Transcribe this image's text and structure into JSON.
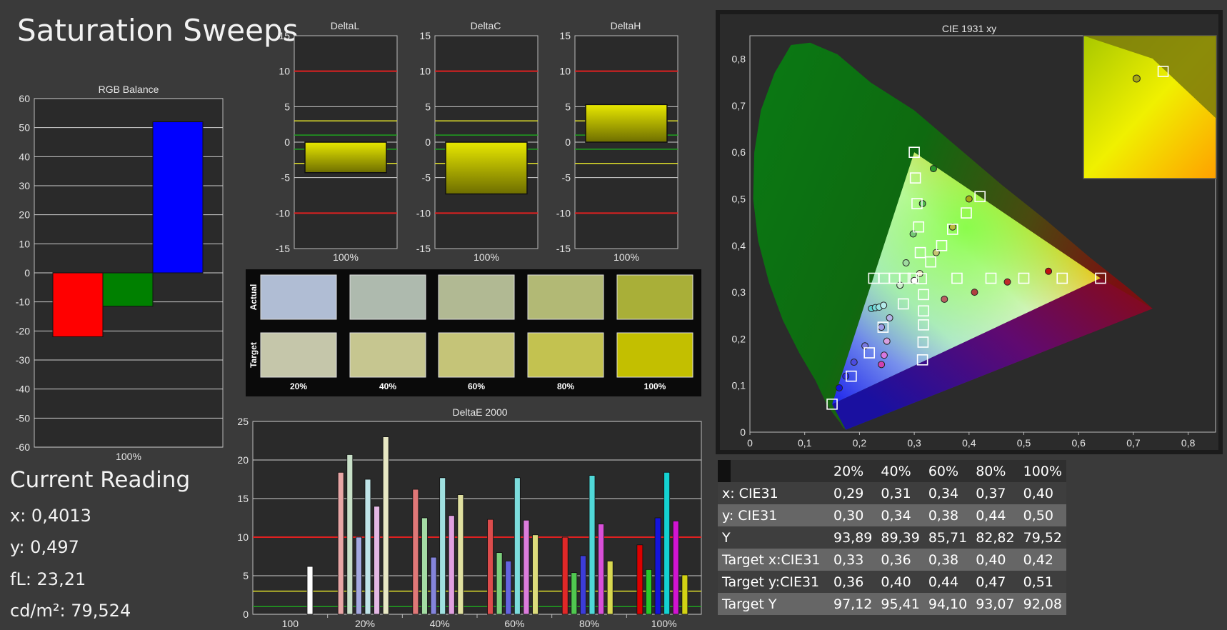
{
  "page": {
    "title": "Saturation Sweeps"
  },
  "current_reading": {
    "title": "Current Reading",
    "lines": [
      "x: 0,4013",
      "y: 0,497",
      "fL: 23,21",
      "cd/m²: 79,524"
    ]
  },
  "swatches": {
    "row_labels": [
      "Actual",
      "Target"
    ],
    "column_labels": [
      "20%",
      "40%",
      "60%",
      "80%",
      "100%"
    ],
    "actual_colors": [
      "#b0bdd4",
      "#aebaae",
      "#b1b993",
      "#b2b975",
      "#a9af38"
    ],
    "target_colors": [
      "#c5c6aa",
      "#c6c690",
      "#c5c478",
      "#c3c250",
      "#c3bf00"
    ]
  },
  "table": {
    "columns": [
      "20%",
      "40%",
      "60%",
      "80%",
      "100%"
    ],
    "rows": [
      {
        "label": "x: CIE31",
        "values": [
          "0,29",
          "0,31",
          "0,34",
          "0,37",
          "0,40"
        ]
      },
      {
        "label": "y: CIE31",
        "values": [
          "0,30",
          "0,34",
          "0,38",
          "0,44",
          "0,50"
        ]
      },
      {
        "label": "Y",
        "values": [
          "93,89",
          "89,39",
          "85,71",
          "82,82",
          "79,52"
        ]
      },
      {
        "label": "Target x:CIE31",
        "values": [
          "0,33",
          "0,36",
          "0,38",
          "0,40",
          "0,42"
        ]
      },
      {
        "label": "Target y:CIE31",
        "values": [
          "0,36",
          "0,40",
          "0,44",
          "0,47",
          "0,51"
        ]
      },
      {
        "label": "Target Y",
        "values": [
          "97,12",
          "95,41",
          "94,10",
          "93,07",
          "92,08"
        ]
      }
    ]
  },
  "chart_data": [
    {
      "id": "rgb-balance",
      "type": "bar",
      "title": "RGB Balance",
      "categories": [
        "100%"
      ],
      "series": [
        {
          "color": "#ff0000",
          "values": [
            -22
          ]
        },
        {
          "color": "#008000",
          "values": [
            -11.5
          ]
        },
        {
          "color": "#0000ff",
          "values": [
            52
          ]
        }
      ],
      "ylim": [
        -60,
        60
      ],
      "yticks": [
        60,
        50,
        40,
        30,
        20,
        10,
        0,
        -10,
        -20,
        -30,
        -40,
        -50,
        -60
      ],
      "grid": true
    },
    {
      "id": "delta-l",
      "type": "bar",
      "title": "DeltaL",
      "categories": [
        "100%"
      ],
      "values": [
        -4.3
      ],
      "ylim": [
        -15,
        15
      ],
      "yticks": [
        15,
        10,
        5,
        0,
        -5,
        -10,
        -15
      ],
      "red_lines": [
        10,
        -10
      ],
      "yellow_lines": [
        3,
        -3
      ],
      "green_lines": [
        1,
        -1
      ]
    },
    {
      "id": "delta-c",
      "type": "bar",
      "title": "DeltaC",
      "categories": [
        "100%"
      ],
      "values": [
        -7.3
      ],
      "ylim": [
        -15,
        15
      ],
      "yticks": [
        15,
        10,
        5,
        0,
        -5,
        -10,
        -15
      ],
      "red_lines": [
        10,
        -10
      ],
      "yellow_lines": [
        3,
        -3
      ],
      "green_lines": [
        1,
        -1
      ]
    },
    {
      "id": "delta-h",
      "type": "bar",
      "title": "DeltaH",
      "categories": [
        "100%"
      ],
      "values": [
        5.3
      ],
      "ylim": [
        -15,
        15
      ],
      "yticks": [
        15,
        10,
        5,
        0,
        -5,
        -10,
        -15
      ],
      "red_lines": [
        10,
        -10
      ],
      "yellow_lines": [
        3,
        -3
      ],
      "green_lines": [
        1,
        -1
      ]
    },
    {
      "id": "delta-e-2000",
      "type": "bar",
      "title": "DeltaE 2000",
      "categories": [
        "100",
        "20%",
        "40%",
        "60%",
        "80%",
        "100%"
      ],
      "groups": [
        {
          "category": "100",
          "bars": [
            {
              "color": "#ffffff",
              "value": 6.2
            }
          ]
        },
        {
          "category": "20%",
          "bars": [
            {
              "color": "#e8a6a6",
              "value": 18.4
            },
            {
              "color": "#c8e0c8",
              "value": 20.7
            },
            {
              "color": "#a4a8e0",
              "value": 10.0
            },
            {
              "color": "#c0e4e8",
              "value": 17.5
            },
            {
              "color": "#e4b8e4",
              "value": 14.0
            },
            {
              "color": "#e8e8c4",
              "value": 23.0
            }
          ]
        },
        {
          "category": "40%",
          "bars": [
            {
              "color": "#e07878",
              "value": 16.2
            },
            {
              "color": "#a4dca4",
              "value": 12.5
            },
            {
              "color": "#8484dc",
              "value": 7.4
            },
            {
              "color": "#a0e0e0",
              "value": 17.7
            },
            {
              "color": "#e0a0e0",
              "value": 12.8
            },
            {
              "color": "#e0e0a0",
              "value": 15.5
            }
          ]
        },
        {
          "category": "60%",
          "bars": [
            {
              "color": "#dc4c4c",
              "value": 12.3
            },
            {
              "color": "#7cd07c",
              "value": 8.0
            },
            {
              "color": "#6464e0",
              "value": 6.9
            },
            {
              "color": "#7cdcdc",
              "value": 17.7
            },
            {
              "color": "#dc7cdc",
              "value": 12.2
            },
            {
              "color": "#dcdc7c",
              "value": 10.3
            }
          ]
        },
        {
          "category": "80%",
          "bars": [
            {
              "color": "#e02828",
              "value": 10.0
            },
            {
              "color": "#50c850",
              "value": 5.4
            },
            {
              "color": "#3c3cd8",
              "value": 7.6
            },
            {
              "color": "#50d8d8",
              "value": 18.0
            },
            {
              "color": "#d850d8",
              "value": 11.7
            },
            {
              "color": "#d8d850",
              "value": 6.9
            }
          ]
        },
        {
          "category": "100%",
          "bars": [
            {
              "color": "#dc0000",
              "value": 9.0
            },
            {
              "color": "#28c828",
              "value": 5.8
            },
            {
              "color": "#1414dc",
              "value": 12.5
            },
            {
              "color": "#14d2d2",
              "value": 18.4
            },
            {
              "color": "#d214d2",
              "value": 12.1
            },
            {
              "color": "#d2d214",
              "value": 5.1
            }
          ]
        }
      ],
      "ylim": [
        0,
        25
      ],
      "yticks": [
        25,
        20,
        15,
        10,
        5,
        0
      ],
      "red_lines": [
        10
      ],
      "yellow_lines": [
        3
      ],
      "green_lines": [
        1
      ]
    },
    {
      "id": "cie-1931-xy",
      "type": "scatter",
      "title": "CIE 1931 xy",
      "xlim": [
        0,
        0.85
      ],
      "ylim": [
        0,
        0.85
      ],
      "xticks": [
        "0",
        "0,1",
        "0,2",
        "0,3",
        "0,4",
        "0,5",
        "0,6",
        "0,7",
        "0,8"
      ],
      "yticks": [
        "0",
        "0,1",
        "0,2",
        "0,3",
        "0,4",
        "0,5",
        "0,6",
        "0,7",
        "0,8"
      ],
      "gamut_triangle": [
        [
          0.64,
          0.33
        ],
        [
          0.3,
          0.6
        ],
        [
          0.15,
          0.06
        ]
      ],
      "targets": [
        [
          0.3,
          0.6
        ],
        [
          0.302,
          0.545
        ],
        [
          0.305,
          0.49
        ],
        [
          0.308,
          0.44
        ],
        [
          0.311,
          0.385
        ],
        [
          0.313,
          0.329
        ],
        [
          0.226,
          0.33
        ],
        [
          0.245,
          0.33
        ],
        [
          0.264,
          0.33
        ],
        [
          0.283,
          0.33
        ],
        [
          0.298,
          0.33
        ],
        [
          0.378,
          0.33
        ],
        [
          0.44,
          0.33
        ],
        [
          0.5,
          0.33
        ],
        [
          0.57,
          0.33
        ],
        [
          0.64,
          0.33
        ],
        [
          0.15,
          0.06
        ],
        [
          0.185,
          0.12
        ],
        [
          0.218,
          0.17
        ],
        [
          0.243,
          0.225
        ],
        [
          0.28,
          0.275
        ],
        [
          0.315,
          0.155
        ],
        [
          0.316,
          0.193
        ],
        [
          0.317,
          0.23
        ],
        [
          0.317,
          0.26
        ],
        [
          0.317,
          0.295
        ],
        [
          0.33,
          0.365
        ],
        [
          0.35,
          0.4
        ],
        [
          0.37,
          0.435
        ],
        [
          0.395,
          0.47
        ],
        [
          0.42,
          0.505
        ]
      ],
      "measured": [
        {
          "x": 0.335,
          "y": 0.565,
          "color": "#2a9a2a"
        },
        {
          "x": 0.315,
          "y": 0.49,
          "color": "#4fbb4f"
        },
        {
          "x": 0.298,
          "y": 0.425,
          "color": "#74c874"
        },
        {
          "x": 0.285,
          "y": 0.363,
          "color": "#a0dca0"
        },
        {
          "x": 0.274,
          "y": 0.315,
          "color": "#c8eec8"
        },
        {
          "x": 0.3,
          "y": 0.325,
          "color": "#ffffff"
        },
        {
          "x": 0.31,
          "y": 0.34,
          "color": "#e8e8c0"
        },
        {
          "x": 0.34,
          "y": 0.385,
          "color": "#c6c672"
        },
        {
          "x": 0.37,
          "y": 0.44,
          "color": "#bcbc40"
        },
        {
          "x": 0.4,
          "y": 0.5,
          "color": "#a8a816"
        },
        {
          "x": 0.355,
          "y": 0.285,
          "color": "#b76060"
        },
        {
          "x": 0.41,
          "y": 0.3,
          "color": "#b04040"
        },
        {
          "x": 0.47,
          "y": 0.322,
          "color": "#c02a2a"
        },
        {
          "x": 0.545,
          "y": 0.345,
          "color": "#c01010"
        },
        {
          "x": 0.222,
          "y": 0.265,
          "color": "#5fd0d0"
        },
        {
          "x": 0.229,
          "y": 0.267,
          "color": "#78dada"
        },
        {
          "x": 0.236,
          "y": 0.268,
          "color": "#96e2e2"
        },
        {
          "x": 0.244,
          "y": 0.272,
          "color": "#b4eaea"
        },
        {
          "x": 0.255,
          "y": 0.245,
          "color": "#b4b4e6"
        },
        {
          "x": 0.24,
          "y": 0.225,
          "color": "#9c9ce6"
        },
        {
          "x": 0.21,
          "y": 0.185,
          "color": "#7878e0"
        },
        {
          "x": 0.19,
          "y": 0.15,
          "color": "#4c4ce0"
        },
        {
          "x": 0.175,
          "y": 0.12,
          "color": "#2a2ae0"
        },
        {
          "x": 0.163,
          "y": 0.095,
          "color": "#1010e0"
        },
        {
          "x": 0.25,
          "y": 0.195,
          "color": "#d8a0e0"
        },
        {
          "x": 0.245,
          "y": 0.165,
          "color": "#d878e0"
        },
        {
          "x": 0.24,
          "y": 0.145,
          "color": "#d040b0"
        }
      ],
      "inset_target": [
        0.42,
        0.505
      ],
      "inset_measured": [
        0.4,
        0.5
      ]
    }
  ]
}
